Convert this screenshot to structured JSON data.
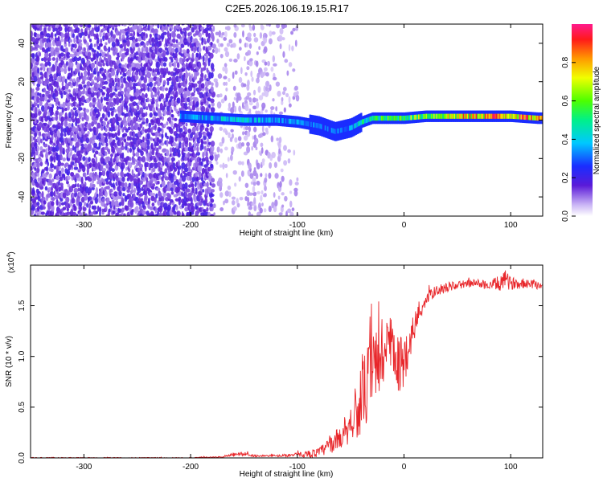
{
  "title": "C2E5.2026.106.19.15.R17",
  "chart_data": [
    {
      "type": "heatmap",
      "xlabel": "Height of straight line (km)",
      "ylabel": "Frequency (Hz)",
      "xlim": [
        -350,
        130
      ],
      "ylim": [
        -50,
        50
      ],
      "xticks": [
        -300,
        -200,
        -100,
        0,
        100
      ],
      "xtick_labels": [
        "-300",
        "-200",
        "-100",
        "0",
        "100"
      ],
      "yticks": [
        -40,
        -20,
        0,
        20,
        40
      ],
      "ytick_labels": [
        "-40",
        "-20",
        "0",
        "20",
        "40"
      ],
      "colorbar": {
        "label": "Normalized spectral amplitude",
        "range": [
          0,
          1
        ],
        "ticks": [
          0.0,
          0.2,
          0.4,
          0.6,
          0.8
        ],
        "tick_labels": [
          "0.0",
          "0.2",
          "0.4",
          "0.6",
          "0.8"
        ]
      },
      "ridge": {
        "x": [
          -210,
          -180,
          -150,
          -120,
          -100,
          -80,
          -65,
          -50,
          -40,
          -30,
          -15,
          0,
          20,
          50,
          80,
          100,
          125
        ],
        "y": [
          2,
          1,
          0,
          0,
          -1,
          -3,
          -6,
          -4,
          -1,
          1,
          1,
          1,
          2,
          2,
          2,
          2,
          1
        ],
        "amplitude": [
          0.3,
          0.4,
          0.4,
          0.35,
          0.35,
          0.3,
          0.3,
          0.35,
          0.45,
          0.5,
          0.55,
          0.6,
          0.65,
          0.75,
          0.85,
          0.85,
          0.8
        ]
      },
      "noise_region": {
        "from": -350,
        "to": -100
      }
    },
    {
      "type": "line",
      "xlabel": "Height of straight line (km)",
      "ylabel": "SNR (10 * v/v)",
      "multiplier_label": "(x10",
      "multiplier_exponent": "4",
      "xlim": [
        -350,
        130
      ],
      "ylim": [
        0,
        1.9
      ],
      "xticks": [
        -300,
        -200,
        -100,
        0,
        100
      ],
      "xtick_labels": [
        "-300",
        "-200",
        "-100",
        "0",
        "100"
      ],
      "yticks": [
        0.0,
        0.5,
        1.0,
        1.5
      ],
      "ytick_labels": [
        "0.0",
        "0.5",
        "1.0",
        "1.5"
      ],
      "series": [
        {
          "name": "SNR",
          "color": "#e8262a",
          "x": [
            -350,
            -300,
            -250,
            -200,
            -170,
            -160,
            -150,
            -140,
            -120,
            -100,
            -80,
            -70,
            -60,
            -50,
            -45,
            -40,
            -35,
            -30,
            -25,
            -20,
            -15,
            -10,
            -5,
            0,
            5,
            10,
            15,
            20,
            25,
            30,
            40,
            50,
            60,
            70,
            80,
            90,
            95,
            100,
            110,
            120,
            130
          ],
          "y": [
            0.0,
            0.0,
            0.0,
            0.0,
            0.01,
            0.03,
            0.04,
            0.02,
            0.02,
            0.03,
            0.05,
            0.12,
            0.2,
            0.35,
            0.45,
            0.55,
            0.7,
            0.8,
            0.95,
            1.05,
            1.1,
            1.0,
            0.9,
            0.95,
            1.15,
            1.3,
            1.45,
            1.55,
            1.6,
            1.65,
            1.68,
            1.7,
            1.72,
            1.72,
            1.7,
            1.72,
            1.75,
            1.72,
            1.72,
            1.72,
            1.7
          ],
          "spread": [
            0.005,
            0.005,
            0.005,
            0.005,
            0.005,
            0.02,
            0.02,
            0.01,
            0.01,
            0.02,
            0.05,
            0.08,
            0.12,
            0.2,
            0.25,
            0.35,
            0.4,
            0.45,
            0.45,
            0.45,
            0.4,
            0.3,
            0.3,
            0.25,
            0.2,
            0.15,
            0.1,
            0.08,
            0.06,
            0.05,
            0.05,
            0.04,
            0.04,
            0.04,
            0.05,
            0.08,
            0.1,
            0.06,
            0.05,
            0.05,
            0.05
          ]
        }
      ]
    }
  ]
}
